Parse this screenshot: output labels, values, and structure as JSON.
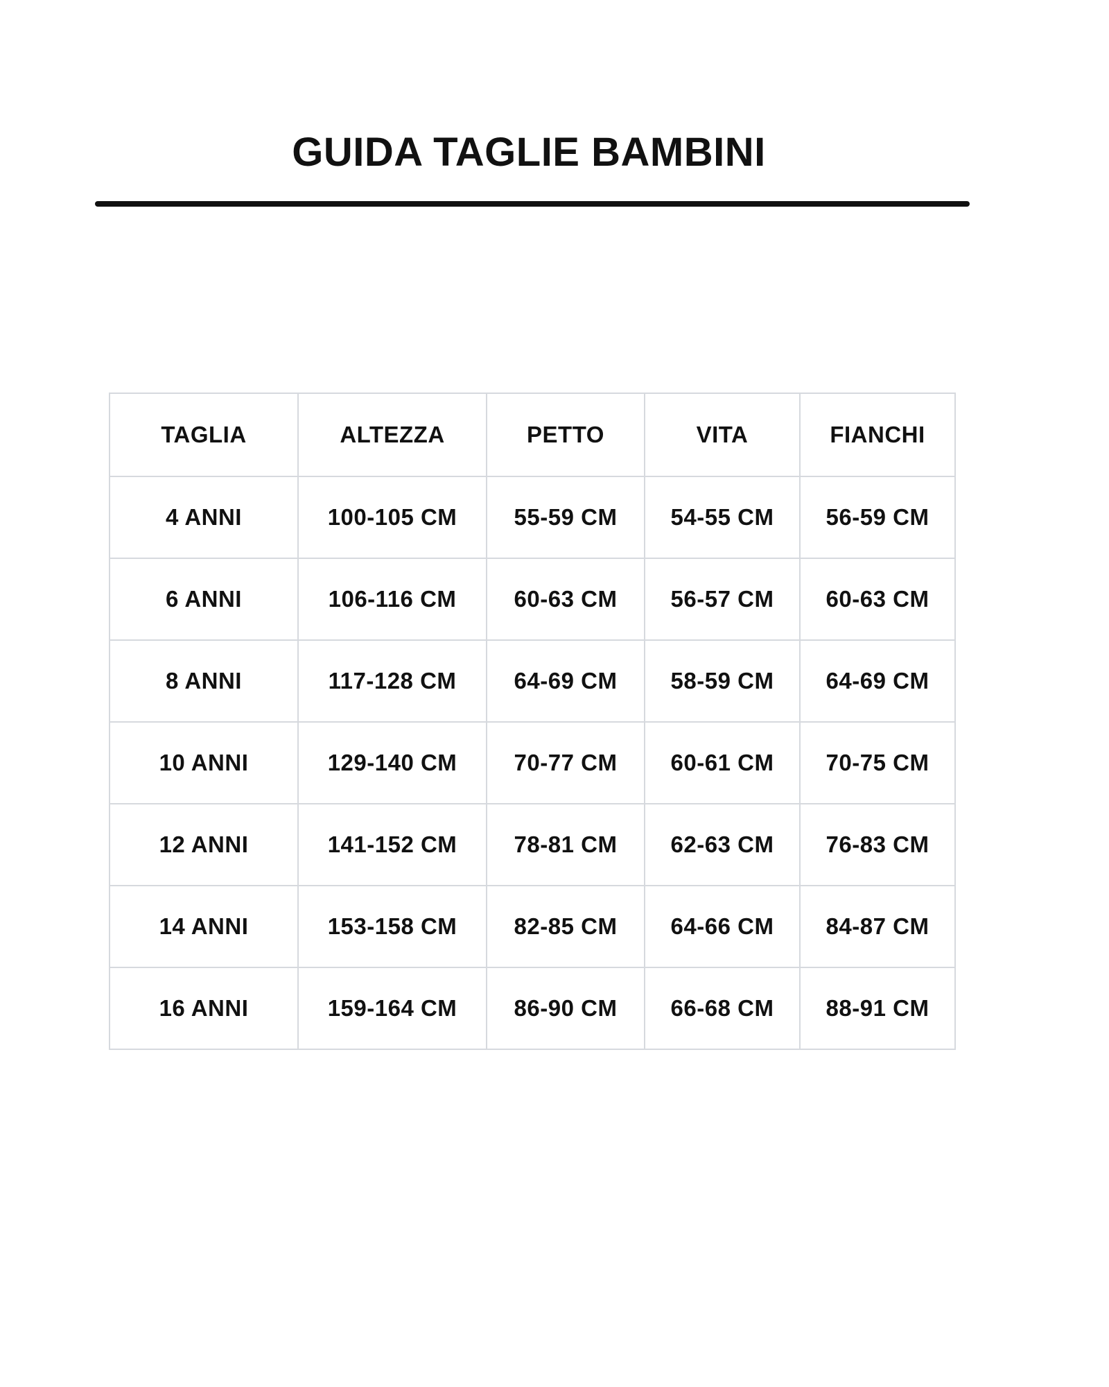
{
  "title": "GUIDA TAGLIE BAMBINI",
  "table": {
    "headers": [
      "TAGLIA",
      "ALTEZZA",
      "PETTO",
      "VITA",
      "FIANCHI"
    ],
    "rows": [
      [
        "4 ANNI",
        "100-105 CM",
        "55-59 CM",
        "54-55 CM",
        "56-59 CM"
      ],
      [
        "6 ANNI",
        "106-116 CM",
        "60-63 CM",
        "56-57 CM",
        "60-63 CM"
      ],
      [
        "8 ANNI",
        "117-128 CM",
        "64-69 CM",
        "58-59 CM",
        "64-69 CM"
      ],
      [
        "10 ANNI",
        "129-140 CM",
        "70-77 CM",
        "60-61 CM",
        "70-75 CM"
      ],
      [
        "12 ANNI",
        "141-152 CM",
        "78-81 CM",
        "62-63 CM",
        "76-83 CM"
      ],
      [
        "14 ANNI",
        "153-158 CM",
        "82-85 CM",
        "64-66 CM",
        "84-87 CM"
      ],
      [
        "16 ANNI",
        "159-164 CM",
        "86-90 CM",
        "66-68 CM",
        "88-91 CM"
      ]
    ]
  }
}
